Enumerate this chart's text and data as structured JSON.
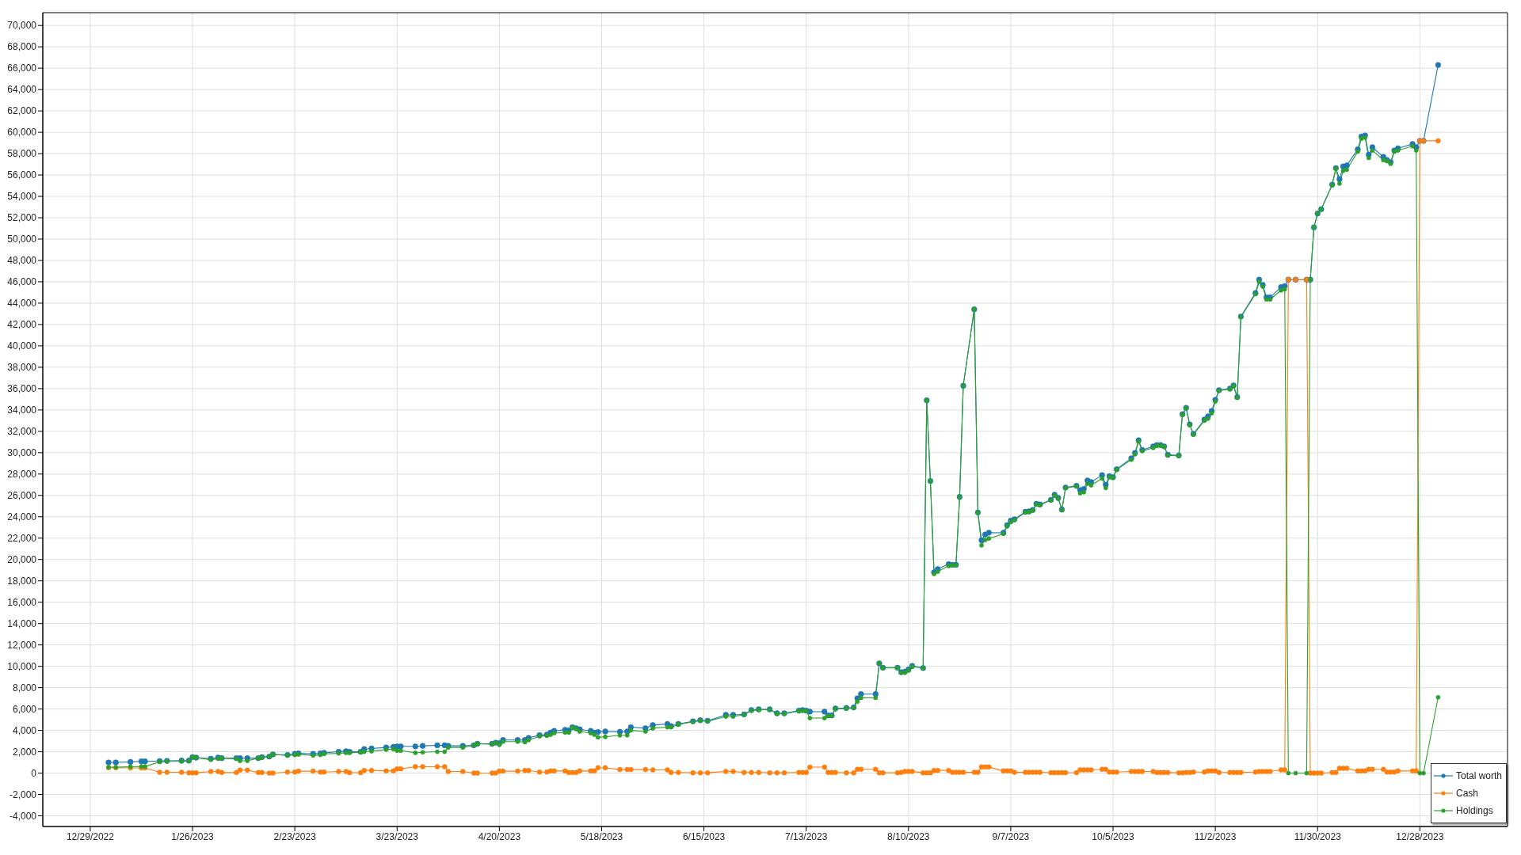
{
  "chart_data": {
    "type": "line",
    "x": [
      "2023-01-03",
      "2023-01-05",
      "2023-01-09",
      "2023-01-12",
      "2023-01-13",
      "2023-01-17",
      "2023-01-19",
      "2023-01-23",
      "2023-01-25",
      "2023-01-26",
      "2023-01-27",
      "2023-01-31",
      "2023-02-02",
      "2023-02-03",
      "2023-02-07",
      "2023-02-08",
      "2023-02-10",
      "2023-02-13",
      "2023-02-14",
      "2023-02-16",
      "2023-02-17",
      "2023-02-21",
      "2023-02-23",
      "2023-02-24",
      "2023-02-28",
      "2023-03-02",
      "2023-03-03",
      "2023-03-07",
      "2023-03-09",
      "2023-03-10",
      "2023-03-13",
      "2023-03-14",
      "2023-03-16",
      "2023-03-20",
      "2023-03-22",
      "2023-03-23",
      "2023-03-24",
      "2023-03-28",
      "2023-03-30",
      "2023-04-03",
      "2023-04-05",
      "2023-04-06",
      "2023-04-10",
      "2023-04-13",
      "2023-04-14",
      "2023-04-18",
      "2023-04-19",
      "2023-04-20",
      "2023-04-21",
      "2023-04-25",
      "2023-04-27",
      "2023-04-28",
      "2023-05-01",
      "2023-05-03",
      "2023-05-04",
      "2023-05-05",
      "2023-05-08",
      "2023-05-09",
      "2023-05-10",
      "2023-05-11",
      "2023-05-12",
      "2023-05-15",
      "2023-05-16",
      "2023-05-17",
      "2023-05-19",
      "2023-05-23",
      "2023-05-25",
      "2023-05-26",
      "2023-05-30",
      "2023-06-01",
      "2023-06-05",
      "2023-06-06",
      "2023-06-08",
      "2023-06-12",
      "2023-06-14",
      "2023-06-16",
      "2023-06-21",
      "2023-06-23",
      "2023-06-26",
      "2023-06-28",
      "2023-06-30",
      "2023-07-03",
      "2023-07-05",
      "2023-07-07",
      "2023-07-11",
      "2023-07-12",
      "2023-07-13",
      "2023-07-14",
      "2023-07-18",
      "2023-07-19",
      "2023-07-20",
      "2023-07-21",
      "2023-07-24",
      "2023-07-26",
      "2023-07-27",
      "2023-07-28",
      "2023-08-01",
      "2023-08-02",
      "2023-08-03",
      "2023-08-07",
      "2023-08-08",
      "2023-08-09",
      "2023-08-10",
      "2023-08-11",
      "2023-08-14",
      "2023-08-15",
      "2023-08-16",
      "2023-08-17",
      "2023-08-18",
      "2023-08-21",
      "2023-08-22",
      "2023-08-23",
      "2023-08-24",
      "2023-08-25",
      "2023-08-28",
      "2023-08-29",
      "2023-08-30",
      "2023-08-31",
      "2023-09-01",
      "2023-09-05",
      "2023-09-06",
      "2023-09-07",
      "2023-09-08",
      "2023-09-11",
      "2023-09-12",
      "2023-09-13",
      "2023-09-14",
      "2023-09-15",
      "2023-09-18",
      "2023-09-19",
      "2023-09-20",
      "2023-09-21",
      "2023-09-22",
      "2023-09-25",
      "2023-09-26",
      "2023-09-27",
      "2023-09-28",
      "2023-09-29",
      "2023-10-02",
      "2023-10-03",
      "2023-10-04",
      "2023-10-05",
      "2023-10-06",
      "2023-10-10",
      "2023-10-11",
      "2023-10-12",
      "2023-10-13",
      "2023-10-16",
      "2023-10-17",
      "2023-10-18",
      "2023-10-19",
      "2023-10-20",
      "2023-10-23",
      "2023-10-24",
      "2023-10-25",
      "2023-10-26",
      "2023-10-27",
      "2023-10-30",
      "2023-10-31",
      "2023-11-01",
      "2023-11-02",
      "2023-11-03",
      "2023-11-06",
      "2023-11-07",
      "2023-11-08",
      "2023-11-09",
      "2023-11-13",
      "2023-11-14",
      "2023-11-15",
      "2023-11-16",
      "2023-11-17",
      "2023-11-20",
      "2023-11-21",
      "2023-11-22",
      "2023-11-24",
      "2023-11-27",
      "2023-11-28",
      "2023-11-29",
      "2023-11-30",
      "2023-12-01",
      "2023-12-04",
      "2023-12-05",
      "2023-12-06",
      "2023-12-07",
      "2023-12-08",
      "2023-12-11",
      "2023-12-12",
      "2023-12-13",
      "2023-12-14",
      "2023-12-15",
      "2023-12-18",
      "2023-12-19",
      "2023-12-20",
      "2023-12-21",
      "2023-12-22",
      "2023-12-26",
      "2023-12-27",
      "2023-12-28",
      "2023-12-29",
      "2024-01-02"
    ],
    "series": [
      {
        "name": "Total worth",
        "color": "#1f77b4",
        "values": [
          1000,
          1000,
          1050,
          1100,
          1100,
          1130,
          1150,
          1170,
          1170,
          1500,
          1450,
          1350,
          1450,
          1400,
          1400,
          1400,
          1400,
          1400,
          1500,
          1550,
          1750,
          1700,
          1800,
          1850,
          1800,
          1850,
          1900,
          2000,
          2050,
          2000,
          2000,
          2250,
          2300,
          2400,
          2450,
          2500,
          2500,
          2500,
          2550,
          2600,
          2600,
          2550,
          2550,
          2600,
          2750,
          2750,
          2850,
          2800,
          3100,
          3100,
          3100,
          3300,
          3550,
          3600,
          3800,
          3950,
          4050,
          4000,
          4300,
          4200,
          4100,
          3950,
          3800,
          3850,
          3900,
          3870,
          3900,
          4300,
          4200,
          4500,
          4600,
          4400,
          4600,
          4850,
          4950,
          4900,
          5450,
          5450,
          5500,
          5900,
          5970,
          5970,
          5600,
          5600,
          5850,
          5900,
          5850,
          5750,
          5750,
          5400,
          5400,
          6050,
          6100,
          6150,
          7000,
          7400,
          7400,
          10270,
          9870,
          9870,
          9450,
          9500,
          9700,
          10040,
          9840,
          34900,
          27350,
          18800,
          19100,
          19570,
          19500,
          19500,
          25860,
          36270,
          43430,
          24400,
          21800,
          22340,
          22510,
          22500,
          23220,
          23630,
          23760,
          24470,
          24500,
          24640,
          25210,
          25150,
          25590,
          26060,
          25760,
          24670,
          26740,
          26900,
          26500,
          26600,
          27400,
          27250,
          27900,
          27000,
          27800,
          27700,
          28450,
          29470,
          29980,
          31160,
          30250,
          30590,
          30720,
          30720,
          30590,
          29810,
          29740,
          33600,
          34200,
          32650,
          31750,
          33100,
          33400,
          33900,
          34950,
          35850,
          36000,
          36300,
          35200,
          42750,
          44950,
          46200,
          45700,
          44550,
          44550,
          45500,
          45600,
          46200,
          46200,
          46200,
          46200,
          51100,
          52400,
          52800,
          55100,
          56650,
          55600,
          56800,
          56900,
          58400,
          59600,
          59700,
          57900,
          58600,
          57700,
          57400,
          57200,
          58300,
          58500,
          58900,
          58600,
          59200,
          59200,
          66300
        ]
      },
      {
        "name": "Cash",
        "color": "#ff7f0e",
        "values": [
          500,
          500,
          480,
          480,
          480,
          80,
          80,
          80,
          30,
          30,
          30,
          150,
          150,
          50,
          50,
          280,
          280,
          50,
          50,
          0,
          0,
          100,
          100,
          180,
          180,
          100,
          100,
          150,
          150,
          40,
          40,
          250,
          250,
          200,
          200,
          400,
          400,
          600,
          600,
          600,
          600,
          150,
          150,
          0,
          0,
          0,
          0,
          180,
          180,
          180,
          250,
          250,
          100,
          100,
          200,
          200,
          200,
          50,
          50,
          50,
          200,
          200,
          200,
          500,
          500,
          330,
          330,
          330,
          330,
          300,
          300,
          60,
          60,
          30,
          30,
          30,
          160,
          160,
          60,
          60,
          60,
          30,
          30,
          30,
          60,
          60,
          60,
          560,
          560,
          60,
          60,
          60,
          30,
          30,
          360,
          360,
          360,
          30,
          30,
          30,
          60,
          160,
          160,
          160,
          30,
          30,
          30,
          250,
          250,
          250,
          70,
          70,
          70,
          70,
          70,
          70,
          570,
          570,
          570,
          200,
          200,
          200,
          70,
          70,
          70,
          70,
          70,
          70,
          40,
          40,
          40,
          40,
          40,
          40,
          300,
          300,
          300,
          300,
          350,
          350,
          100,
          100,
          100,
          150,
          150,
          150,
          150,
          150,
          50,
          50,
          50,
          50,
          30,
          30,
          60,
          60,
          100,
          100,
          200,
          200,
          200,
          60,
          60,
          60,
          60,
          60,
          100,
          150,
          150,
          150,
          150,
          300,
          300,
          46200,
          46200,
          46200,
          0,
          0,
          0,
          0,
          50,
          50,
          450,
          450,
          450,
          200,
          200,
          200,
          350,
          350,
          350,
          100,
          100,
          100,
          200,
          200,
          200,
          59200,
          59200,
          59200
        ]
      },
      {
        "name": "Holdings",
        "color": "#2ca02c",
        "values": [
          550,
          550,
          600,
          620,
          620,
          1050,
          1100,
          1100,
          1130,
          1500,
          1450,
          1250,
          1350,
          1400,
          1350,
          1150,
          1150,
          1400,
          1450,
          1550,
          1750,
          1650,
          1700,
          1750,
          1650,
          1700,
          1800,
          1850,
          1900,
          1900,
          1950,
          2000,
          2050,
          2200,
          2250,
          2100,
          2100,
          1900,
          1950,
          2000,
          2000,
          2400,
          2400,
          2600,
          2750,
          2700,
          2850,
          2650,
          2950,
          2950,
          2900,
          3100,
          3450,
          3500,
          3600,
          3750,
          3800,
          3800,
          4250,
          4150,
          3900,
          3750,
          3600,
          3350,
          3400,
          3540,
          3550,
          4000,
          3900,
          4200,
          4300,
          4300,
          4550,
          4800,
          4900,
          4850,
          5300,
          5300,
          5450,
          5850,
          5920,
          5950,
          5550,
          5550,
          5800,
          5850,
          5800,
          5150,
          5150,
          5350,
          5350,
          6000,
          6050,
          6100,
          6700,
          7050,
          7050,
          10270,
          9850,
          9850,
          9400,
          9400,
          9600,
          9950,
          9840,
          34900,
          27350,
          18650,
          18860,
          19400,
          19450,
          19450,
          25860,
          36270,
          43430,
          24400,
          21330,
          21830,
          21970,
          22400,
          23100,
          23500,
          23700,
          24400,
          24450,
          24600,
          25150,
          25100,
          25550,
          26000,
          25700,
          24650,
          26700,
          26850,
          26200,
          26300,
          27100,
          26950,
          27600,
          26700,
          27700,
          27650,
          28400,
          29350,
          29850,
          31050,
          30150,
          30450,
          30650,
          30650,
          30550,
          29750,
          29700,
          33550,
          34150,
          32600,
          31700,
          33000,
          33200,
          33700,
          34800,
          35800,
          35950,
          36250,
          35150,
          42700,
          44850,
          46000,
          45550,
          44350,
          44350,
          45200,
          45300,
          0,
          0,
          0,
          46200,
          51100,
          52400,
          52800,
          55050,
          56600,
          55200,
          56400,
          56500,
          58200,
          59400,
          59500,
          57600,
          58300,
          57400,
          57300,
          57050,
          58200,
          58300,
          58700,
          58300,
          0,
          0,
          7100
        ]
      }
    ],
    "xlim": [
      "2022-12-16",
      "2024-01-21"
    ],
    "xticks": [
      {
        "value": "2022-12-29",
        "label": "12/29/2022"
      },
      {
        "value": "2023-01-26",
        "label": "1/26/2023"
      },
      {
        "value": "2023-02-23",
        "label": "2/23/2023"
      },
      {
        "value": "2023-03-23",
        "label": "3/23/2023"
      },
      {
        "value": "2023-04-20",
        "label": "4/20/2023"
      },
      {
        "value": "2023-05-18",
        "label": "5/18/2023"
      },
      {
        "value": "2023-06-15",
        "label": "6/15/2023"
      },
      {
        "value": "2023-07-13",
        "label": "7/13/2023"
      },
      {
        "value": "2023-08-10",
        "label": "8/10/2023"
      },
      {
        "value": "2023-09-07",
        "label": "9/7/2023"
      },
      {
        "value": "2023-10-05",
        "label": "10/5/2023"
      },
      {
        "value": "2023-11-02",
        "label": "11/2/2023"
      },
      {
        "value": "2023-11-30",
        "label": "11/30/2023"
      },
      {
        "value": "2023-12-28",
        "label": "12/28/2023"
      }
    ],
    "ylim": [
      -5000,
      71200
    ],
    "yticks": [
      {
        "value": -4000,
        "label": "-4,000"
      },
      {
        "value": -2000,
        "label": "-2,000"
      },
      0,
      {
        "value": 2000,
        "label": "2,000"
      },
      {
        "value": 4000,
        "label": "4,000"
      },
      {
        "value": 6000,
        "label": "6,000"
      },
      {
        "value": 8000,
        "label": "8,000"
      },
      {
        "value": 10000,
        "label": "10,000"
      },
      {
        "value": 12000,
        "label": "12,000"
      },
      {
        "value": 14000,
        "label": "14,000"
      },
      {
        "value": 16000,
        "label": "16,000"
      },
      {
        "value": 18000,
        "label": "18,000"
      },
      {
        "value": 20000,
        "label": "20,000"
      },
      {
        "value": 22000,
        "label": "22,000"
      },
      {
        "value": 24000,
        "label": "24,000"
      },
      {
        "value": 26000,
        "label": "26,000"
      },
      {
        "value": 28000,
        "label": "28,000"
      },
      {
        "value": 30000,
        "label": "30,000"
      },
      {
        "value": 32000,
        "label": "32,000"
      },
      {
        "value": 34000,
        "label": "34,000"
      },
      {
        "value": 36000,
        "label": "36,000"
      },
      {
        "value": 38000,
        "label": "38,000"
      },
      {
        "value": 40000,
        "label": "40,000"
      },
      {
        "value": 42000,
        "label": "42,000"
      },
      {
        "value": 44000,
        "label": "44,000"
      },
      {
        "value": 46000,
        "label": "46,000"
      },
      {
        "value": 48000,
        "label": "48,000"
      },
      {
        "value": 50000,
        "label": "50,000"
      },
      {
        "value": 52000,
        "label": "52,000"
      },
      {
        "value": 54000,
        "label": "54,000"
      },
      {
        "value": 56000,
        "label": "56,000"
      },
      {
        "value": 58000,
        "label": "58,000"
      },
      {
        "value": 60000,
        "label": "60,000"
      },
      {
        "value": 62000,
        "label": "62,000"
      },
      {
        "value": 64000,
        "label": "64,000"
      },
      {
        "value": 66000,
        "label": "66,000"
      },
      {
        "value": 68000,
        "label": "68,000"
      },
      {
        "value": 70000,
        "label": "70,000"
      }
    ],
    "grid": true,
    "legend": "bottom right",
    "marker": "circle",
    "line_style": "solid"
  }
}
